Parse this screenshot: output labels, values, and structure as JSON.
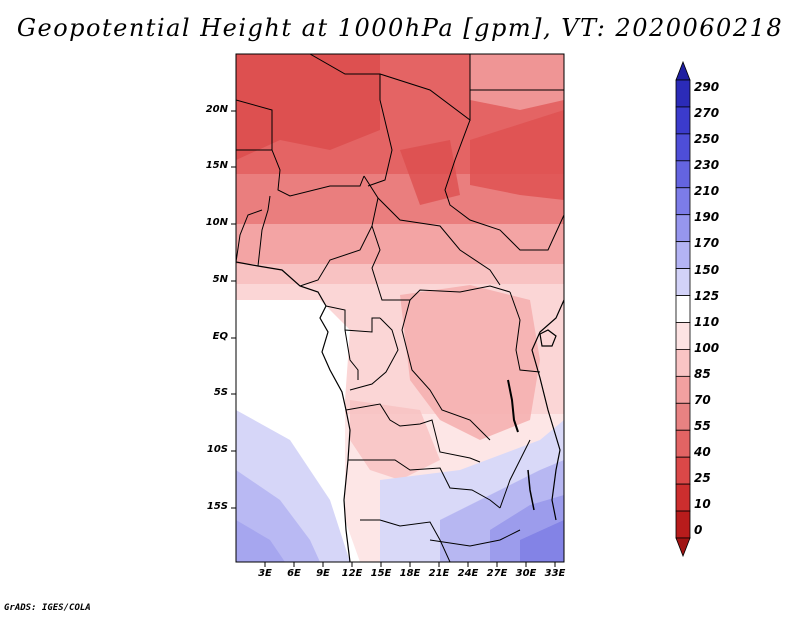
{
  "title": "Geopotential Height at 1000hPa [gpm], VT: 2020060218",
  "map": {
    "x_axis_labels": [
      "3E",
      "6E",
      "9E",
      "12E",
      "15E",
      "18E",
      "21E",
      "24E",
      "27E",
      "30E",
      "33E"
    ],
    "y_axis_labels": [
      "20N",
      "15N",
      "10N",
      "5N",
      "EQ",
      "5S",
      "10S",
      "15S"
    ],
    "lon_range": [
      0,
      34
    ],
    "lat_range": [
      -20,
      24
    ]
  },
  "colorbar": {
    "labels": [
      "290",
      "270",
      "250",
      "230",
      "210",
      "190",
      "170",
      "150",
      "125",
      "110",
      "100",
      "85",
      "70",
      "55",
      "40",
      "25",
      "10",
      "0"
    ],
    "colors": [
      "#1f1fa0",
      "#2b2bb8",
      "#3b3bcc",
      "#4e4ed8",
      "#6464e0",
      "#7c7ce8",
      "#9696ee",
      "#b3b3f4",
      "#d2d2f8",
      "#ffffff",
      "#fde3e3",
      "#f9c4c4",
      "#f2a0a0",
      "#e88282",
      "#e26464",
      "#da4848",
      "#cc2e2e",
      "#b81c1c",
      "#a01414"
    ]
  },
  "footer": "GrADS: IGES/COLA"
}
